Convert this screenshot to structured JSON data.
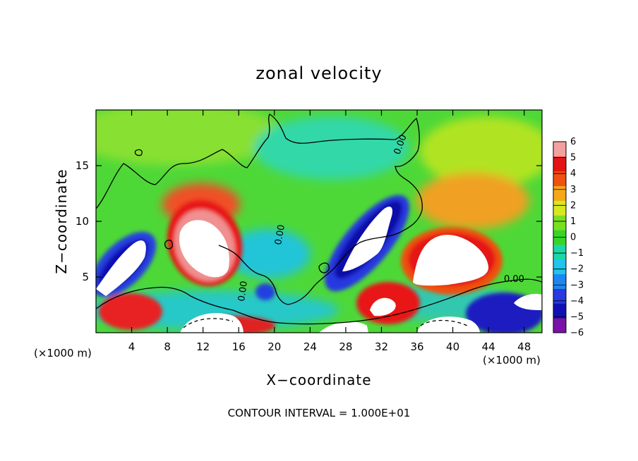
{
  "chart_data": {
    "type": "heatmap",
    "title": "zonal velocity",
    "xlabel": "X−coordinate",
    "ylabel": "Z−coordinate",
    "x_unit_label": "(×1000 m)",
    "x_ticks": [
      4,
      8,
      12,
      16,
      20,
      24,
      28,
      32,
      36,
      40,
      44,
      48
    ],
    "y_ticks": [
      5,
      10,
      15
    ],
    "xlim": [
      0,
      50
    ],
    "ylim": [
      0,
      20
    ],
    "colorbar": {
      "ticks": [
        "6",
        "5",
        "4",
        "3",
        "2",
        "1",
        "0",
        "−1",
        "−2",
        "−3",
        "−4",
        "−5",
        "−6"
      ],
      "range": [
        -6,
        6
      ],
      "colors": [
        "#7a12a8",
        "#1010b4",
        "#2a38e0",
        "#1e86f0",
        "#20c4ec",
        "#1cd8a8",
        "#38d428",
        "#78e020",
        "#d8e820",
        "#f4a818",
        "#f05010",
        "#e41414",
        "#f4a0a0"
      ]
    },
    "contour_labels": [
      "0.00",
      "0.00",
      "0.00",
      "0.00"
    ],
    "footer": "CONTOUR INTERVAL = 1.000E+01",
    "grid": false
  }
}
